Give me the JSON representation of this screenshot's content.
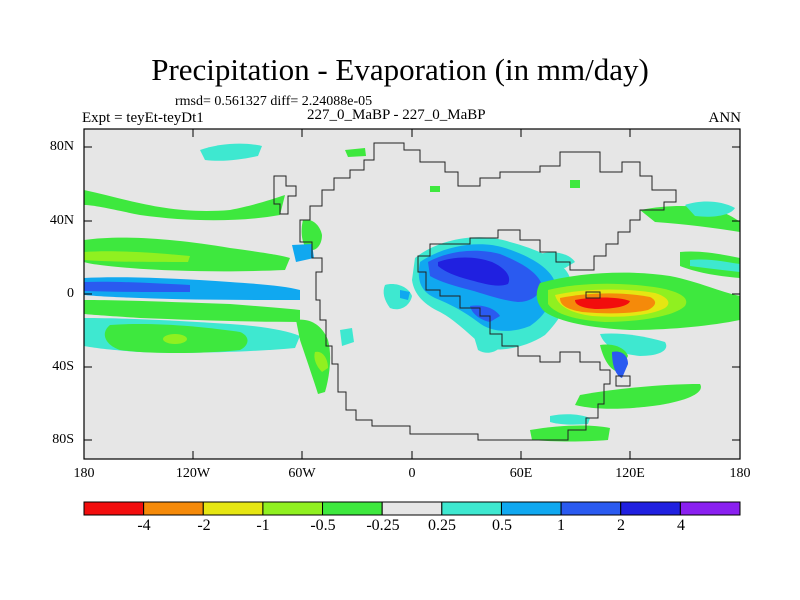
{
  "figure": {
    "title": "Precipitation - Evaporation (in mm/day)",
    "stats": "rmsd= 0.561327  diff= 2.24088e-05",
    "experiment": "Expt = teyEt-teyDt1",
    "experiments_compared": "227_0_MaBP - 227_0_MaBP",
    "season": "ANN"
  },
  "axes": {
    "lat_ticks": [
      "80N",
      "40N",
      "0",
      "40S",
      "80S"
    ],
    "lon_ticks": [
      "180",
      "120W",
      "60W",
      "0",
      "60E",
      "120E",
      "180"
    ]
  },
  "colorbar": {
    "labels": [
      "-4",
      "-2",
      "-1",
      "-0.5",
      "-0.25",
      "0.25",
      "0.5",
      "1",
      "2",
      "4"
    ],
    "colors": [
      "#f20d0d",
      "#f58a0a",
      "#e6e612",
      "#90f020",
      "#3ee83e",
      "#e6e6e6",
      "#3ee8d0",
      "#10a8f0",
      "#2a5af0",
      "#2020e0",
      "#8a20f0"
    ]
  },
  "colors": {
    "background": "#e6e6e6",
    "coast": "#222222"
  }
}
